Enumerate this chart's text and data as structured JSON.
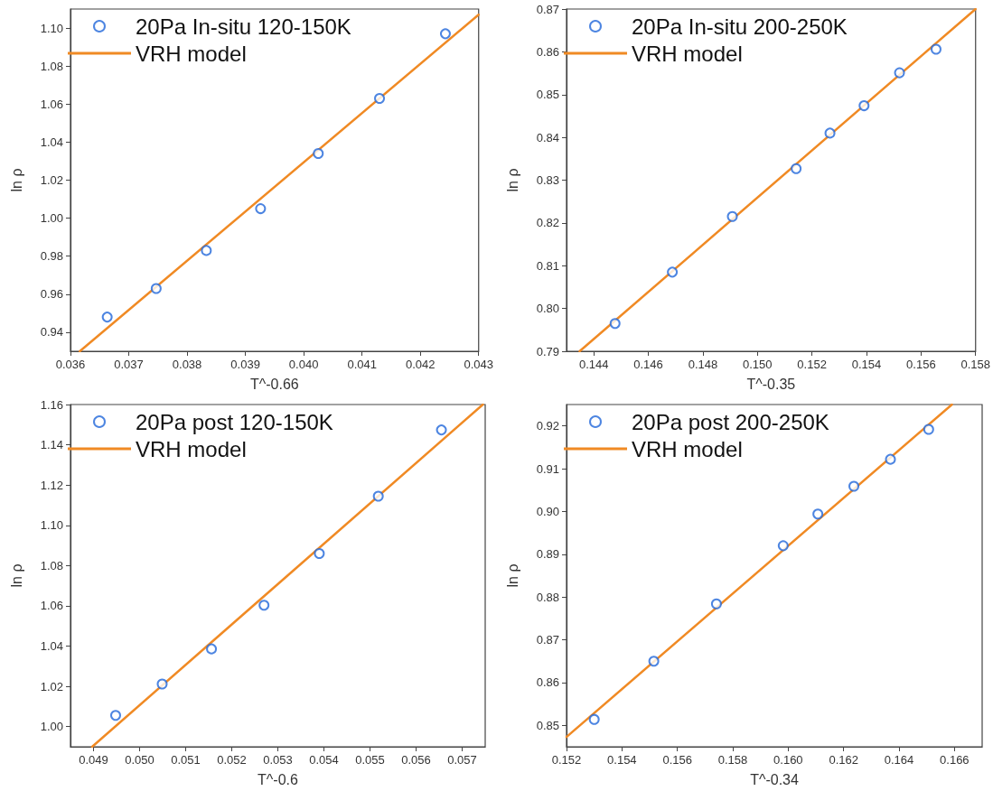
{
  "chart_data": [
    {
      "type": "scatter",
      "xlabel": "T^-0.66",
      "ylabel": "ln ρ",
      "xlim": [
        0.036,
        0.043
      ],
      "ylim": [
        0.93,
        1.11
      ],
      "xticks": [
        0.036,
        0.037,
        0.038,
        0.039,
        {
          "value": 0.04,
          "label": "0.040"
        },
        0.041,
        0.042,
        0.043
      ],
      "yticks": [
        0.94,
        0.96,
        0.98,
        {
          "value": 1.0,
          "label": "1.00"
        },
        1.02,
        1.04,
        1.06,
        1.08,
        {
          "value": 1.1,
          "label": "1.10"
        }
      ],
      "grid": false,
      "legend": "top left",
      "marker": "circle",
      "series": [
        {
          "name": "20Pa In-situ 120-150K",
          "color": "#2166d9",
          "x": [
            0.03663,
            0.03747,
            0.03833,
            0.03926,
            0.04025,
            0.0413,
            0.04243
          ],
          "values": [
            0.948,
            0.963,
            0.983,
            1.005,
            1.034,
            1.063,
            1.097
          ]
        },
        {
          "name": "VRH model",
          "type": "line",
          "marker": "none",
          "color": "#f08a24",
          "x": [
            0.03616,
            0.043
          ],
          "values": [
            0.93,
            1.107
          ]
        }
      ]
    },
    {
      "type": "scatter",
      "xlabel": "T^-0.35",
      "ylabel": "ln ρ",
      "xlim": [
        0.143,
        0.158
      ],
      "ylim": [
        0.79,
        0.87
      ],
      "xticks": [
        0.144,
        0.146,
        0.148,
        {
          "value": 0.15,
          "label": "0.150"
        },
        0.152,
        0.154,
        0.156,
        0.158
      ],
      "yticks": [
        {
          "value": 0.79,
          "label": "0.79"
        },
        {
          "value": 0.8,
          "label": "0.80"
        },
        0.81,
        0.82,
        0.83,
        0.84,
        0.85,
        0.86,
        0.87
      ],
      "grid": false,
      "legend": "top left",
      "marker": "circle",
      "series": [
        {
          "name": "20Pa In-situ 200-250K",
          "color": "#2166d9",
          "x": [
            0.14478,
            0.14688,
            0.14908,
            0.15142,
            0.15266,
            0.15391,
            0.15521,
            0.15655
          ],
          "values": [
            0.7965,
            0.8085,
            0.8215,
            0.8327,
            0.841,
            0.8474,
            0.8551,
            0.8606
          ]
        },
        {
          "name": "VRH model",
          "type": "line",
          "marker": "none",
          "color": "#f08a24",
          "x": [
            0.14348,
            0.158
          ],
          "values": [
            0.79,
            0.87
          ]
        }
      ]
    },
    {
      "type": "scatter",
      "xlabel": "T^-0.6",
      "ylabel": "ln ρ",
      "xlim": [
        0.0485,
        0.0575
      ],
      "ylim": [
        0.99,
        1.16
      ],
      "xticks": [
        0.049,
        {
          "value": 0.05,
          "label": "0.050"
        },
        0.051,
        0.052,
        0.053,
        0.054,
        0.055,
        0.056,
        0.057
      ],
      "yticks": [
        {
          "value": 1.0,
          "label": "1.00"
        },
        1.02,
        1.04,
        1.06,
        1.08,
        {
          "value": 1.1,
          "label": "1.10"
        },
        1.12,
        1.14,
        1.16
      ],
      "grid": false,
      "legend": "top left",
      "marker": "circle",
      "series": [
        {
          "name": "20Pa post 120-150K",
          "color": "#2166d9",
          "x": [
            0.04948,
            0.05049,
            0.05156,
            0.0527,
            0.0539,
            0.05518,
            0.05655
          ],
          "values": [
            1.0056,
            1.0212,
            1.0386,
            1.0603,
            1.086,
            1.1145,
            1.1474
          ]
        },
        {
          "name": "VRH model",
          "type": "line",
          "marker": "none",
          "color": "#f08a24",
          "x": [
            0.04897,
            0.05745
          ],
          "values": [
            0.99,
            1.16
          ]
        }
      ]
    },
    {
      "type": "scatter",
      "xlabel": "T^-0.34",
      "ylabel": "ln ρ",
      "xlim": [
        0.152,
        0.167
      ],
      "ylim": [
        0.845,
        0.925
      ],
      "xticks": [
        0.152,
        0.154,
        0.156,
        0.158,
        {
          "value": 0.16,
          "label": "0.160"
        },
        0.162,
        0.164,
        0.166
      ],
      "yticks": [
        0.85,
        0.86,
        0.87,
        0.88,
        0.89,
        {
          "value": 0.9,
          "label": "0.90"
        },
        0.91,
        0.92
      ],
      "grid": false,
      "legend": "top left",
      "marker": "circle",
      "series": [
        {
          "name": "20Pa post 200-250K",
          "color": "#2166d9",
          "x": [
            0.153,
            0.15515,
            0.15741,
            0.15982,
            0.16107,
            0.16237,
            0.16369,
            0.16507
          ],
          "values": [
            0.8514,
            0.865,
            0.8784,
            0.892,
            0.8994,
            0.9059,
            0.9122,
            0.9192
          ]
        },
        {
          "name": "VRH model",
          "type": "line",
          "marker": "none",
          "color": "#f08a24",
          "x": [
            0.152,
            0.16591
          ],
          "values": [
            0.8473,
            0.925
          ]
        }
      ]
    }
  ]
}
